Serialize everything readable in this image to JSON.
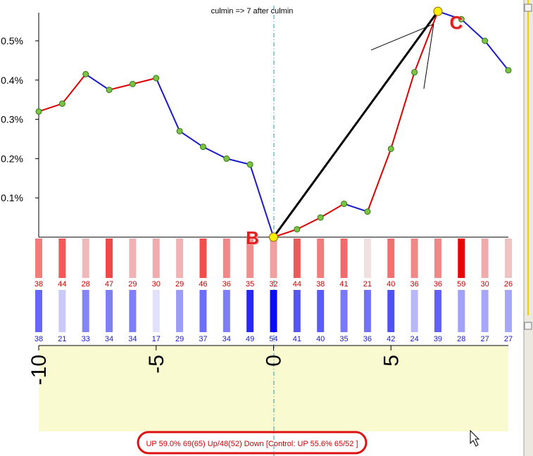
{
  "chart_data": {
    "type": "line",
    "title": "culmin => 7 after culmin",
    "x": [
      -10,
      -9,
      -8,
      -7,
      -6,
      -5,
      -4,
      -3,
      -2,
      -1,
      0,
      1,
      2,
      3,
      4,
      5,
      6,
      7,
      8,
      9,
      10
    ],
    "y": [
      0.32,
      0.34,
      0.415,
      0.375,
      0.39,
      0.405,
      0.27,
      0.23,
      0.2,
      0.185,
      0.0,
      0.02,
      0.05,
      0.085,
      0.065,
      0.225,
      0.42,
      0.575,
      0.555,
      0.5,
      0.425
    ],
    "segment_colors": [
      "red",
      "red",
      "blue",
      "red",
      "red",
      "blue",
      "blue",
      "blue",
      "blue",
      "blue",
      "red",
      "red",
      "red",
      "blue",
      "red",
      "red",
      "red",
      "blue",
      "blue",
      "blue"
    ],
    "ylim": [
      0,
      0.6
    ],
    "yticks": [
      0.1,
      0.2,
      0.3,
      0.4,
      0.5
    ],
    "ytick_labels": [
      "0.1%",
      "0.2%",
      "0.3%",
      "0.4%",
      "0.5%"
    ],
    "xticks": [
      -10,
      -5,
      0,
      5
    ],
    "xtick_labels": [
      "-10",
      "-5",
      "0",
      "5"
    ],
    "up_counts": [
      38,
      44,
      28,
      47,
      29,
      30,
      29,
      46,
      36,
      35,
      32,
      44,
      38,
      41,
      21,
      40,
      36,
      36,
      59,
      30,
      26
    ],
    "down_counts": [
      38,
      21,
      33,
      34,
      34,
      17,
      29,
      37,
      34,
      49,
      54,
      41,
      40,
      35,
      36,
      42,
      24,
      39,
      28,
      27,
      27
    ],
    "annotations": [
      {
        "label": "B",
        "x": 0,
        "y": 0.0
      },
      {
        "label": "C",
        "x": 7,
        "y": 0.575
      }
    ],
    "grid": false,
    "legend": "none"
  },
  "stats_text": "UP 59.0%  69(65) Up/48(52) Down [Control: UP 55.6%  65/52 ]",
  "colors": {
    "up_line": "#e00000",
    "down_line": "#1a1acc",
    "marker_fill": "#7dc242",
    "highlight_marker": "#ffee00",
    "axis_band": "#fafad0"
  }
}
